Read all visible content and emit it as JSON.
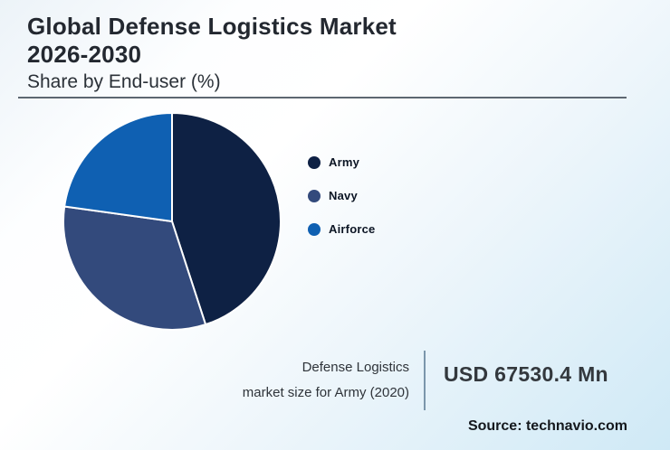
{
  "header": {
    "title_line1": "Global Defense Logistics Market",
    "title_line2": "2026-2030",
    "subtitle": "Share by End-user (%)"
  },
  "chart_data": {
    "type": "pie",
    "title": "Global Defense Logistics Market 2026-2030",
    "subtitle": "Share by End-user (%)",
    "categories": [
      "Army",
      "Navy",
      "Airforce"
    ],
    "values": [
      45,
      32.2,
      22.8
    ],
    "unit": "%",
    "colors": [
      "#0e2144",
      "#334a7c",
      "#0f60b2"
    ],
    "start_angle_deg": 0,
    "direction": "clockwise",
    "legend_position": "right",
    "slice_separator_color": "#ffffff"
  },
  "stat": {
    "label_line1": "Defense Logistics",
    "label_line2": "market size for Army (2020)",
    "value": "USD 67530.4 Mn"
  },
  "source": {
    "text": "Source: technavio.com"
  }
}
